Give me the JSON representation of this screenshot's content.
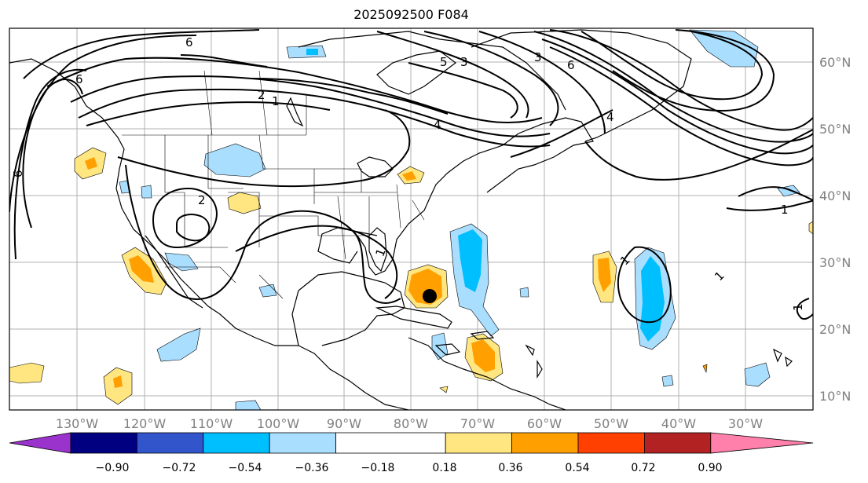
{
  "title": "2025092500 F084",
  "map": {
    "lon_labels": [
      "130°W",
      "120°W",
      "110°W",
      "100°W",
      "90°W",
      "80°W",
      "70°W",
      "60°W",
      "50°W",
      "40°W",
      "30°W"
    ],
    "lat_labels": [
      "60°N",
      "50°N",
      "40°N",
      "30°N",
      "20°N",
      "10°N"
    ],
    "contour_labels": [
      "6",
      "6",
      "2",
      "2",
      "1",
      "3",
      "3",
      "5",
      "6",
      "6",
      "4",
      "4",
      "1",
      "1",
      "1",
      "1",
      "1"
    ],
    "storm_marker": "black-dot"
  },
  "colorbar": {
    "tick_labels": [
      "−0.90",
      "−0.72",
      "−0.54",
      "−0.36",
      "−0.18",
      "0.18",
      "0.36",
      "0.54",
      "0.72",
      "0.90"
    ],
    "colors": [
      "#9933cc",
      "#000080",
      "#3355cc",
      "#00bfff",
      "#aadeff",
      "#ffffff",
      "#ffe680",
      "#ffa000",
      "#ff4000",
      "#b22222",
      "#ff80aa"
    ]
  }
}
